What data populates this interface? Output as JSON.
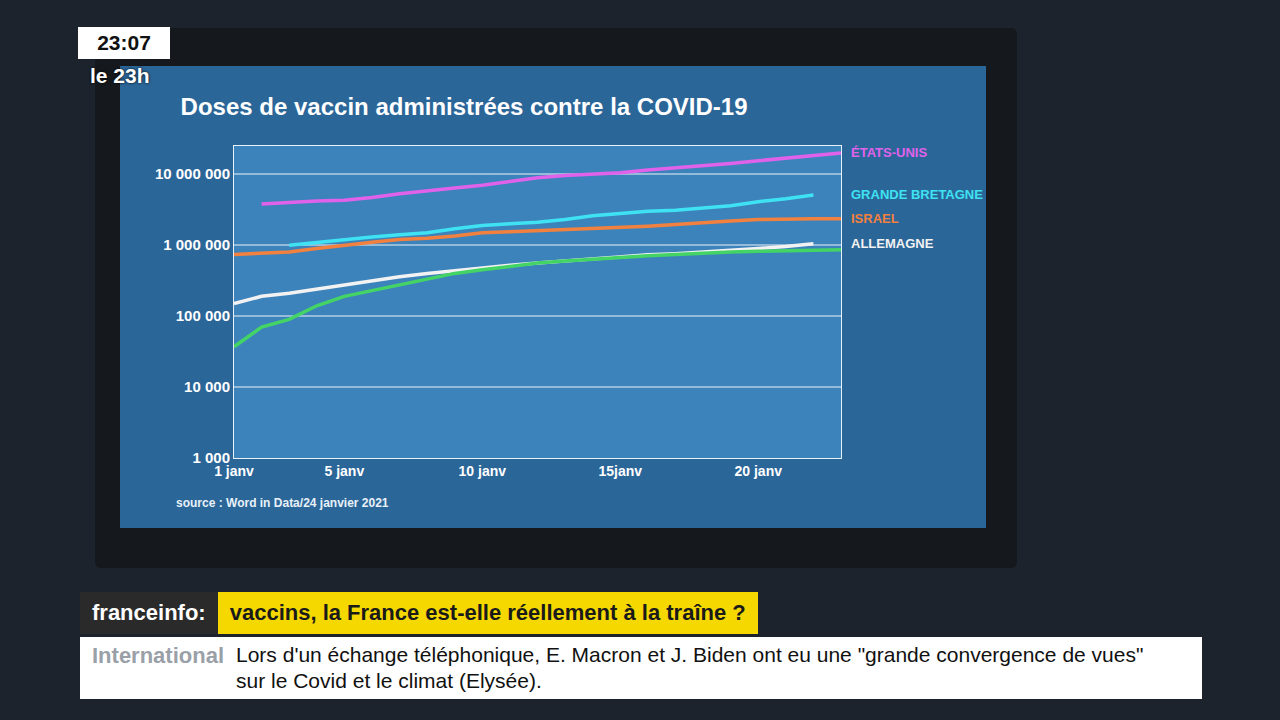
{
  "chart_data": {
    "type": "line",
    "title": "Doses de vaccin administrées contre la COVID-19",
    "source": "source : Word in Data/24 janvier 2021",
    "x": [
      1,
      2,
      3,
      4,
      5,
      6,
      7,
      8,
      9,
      10,
      11,
      12,
      13,
      14,
      15,
      16,
      17,
      18,
      19,
      20,
      21,
      22,
      23
    ],
    "xlim": [
      1,
      23
    ],
    "xticks": [
      {
        "value": 1,
        "label": "1 janv"
      },
      {
        "value": 5,
        "label": "5 janv"
      },
      {
        "value": 10,
        "label": "10 janv"
      },
      {
        "value": 15,
        "label": "15janv"
      },
      {
        "value": 20,
        "label": "20 janv"
      }
    ],
    "ylim": [
      1000,
      25000000
    ],
    "yticks": [
      {
        "value": 1000,
        "label": "1 000"
      },
      {
        "value": 10000,
        "label": "10 000"
      },
      {
        "value": 100000,
        "label": "100 000"
      },
      {
        "value": 1000000,
        "label": "1 000 000"
      },
      {
        "value": 10000000,
        "label": "10 000 000"
      }
    ],
    "log": "y",
    "grid": true,
    "series": [
      {
        "name": "ÉTATS-UNIS",
        "color": "#e062ea",
        "values": [
          null,
          3800000,
          4000000,
          4200000,
          4300000,
          4700000,
          5300000,
          5900000,
          6400000,
          7000000,
          7800000,
          8900000,
          9600000,
          10000000,
          10500000,
          11500000,
          12300000,
          13000000,
          14200000,
          15500000,
          17000000,
          18500000,
          20000000
        ]
      },
      {
        "name": "GRANDE BRETAGNE",
        "color": "#3fe2f2",
        "values": [
          null,
          null,
          1000000,
          1100000,
          1200000,
          1300000,
          1400000,
          1500000,
          1700000,
          1900000,
          2000000,
          2100000,
          2300000,
          2600000,
          2800000,
          3000000,
          3100000,
          3300000,
          3600000,
          4100000,
          4500000,
          5100000,
          null
        ]
      },
      {
        "name": "ISRAEL",
        "color": "#f2803e",
        "values": [
          740000,
          760000,
          800000,
          900000,
          1000000,
          1100000,
          1200000,
          1250000,
          1350000,
          1500000,
          1550000,
          1600000,
          1650000,
          1700000,
          1800000,
          1850000,
          1950000,
          2100000,
          2200000,
          2300000,
          2350000,
          2350000,
          2350000
        ]
      },
      {
        "name": "ALLEMAGNE",
        "color": "#f2f2f2",
        "values": [
          150000,
          190000,
          210000,
          240000,
          280000,
          320000,
          360000,
          400000,
          440000,
          480000,
          520000,
          560000,
          600000,
          650000,
          700000,
          730000,
          760000,
          800000,
          850000,
          900000,
          960000,
          1050000,
          null
        ]
      },
      {
        "name": null,
        "color": "#44d466",
        "values": [
          37000,
          70000,
          90000,
          140000,
          190000,
          230000,
          280000,
          340000,
          400000,
          450000,
          500000,
          560000,
          600000,
          640000,
          680000,
          710000,
          740000,
          780000,
          800000,
          820000,
          840000,
          850000,
          860000
        ]
      }
    ]
  },
  "broadcast": {
    "clock": "23:07",
    "program": "le 23h",
    "channel": "franceinfo:",
    "headline": "vaccins, la France est-elle réellement à la traîne ?",
    "ticker_label": "International",
    "ticker": "Lors d'un échange téléphonique, E. Macron et J. Biden ont eu une \"grande convergence de vues\" sur le Covid et le climat (Elysée)."
  }
}
